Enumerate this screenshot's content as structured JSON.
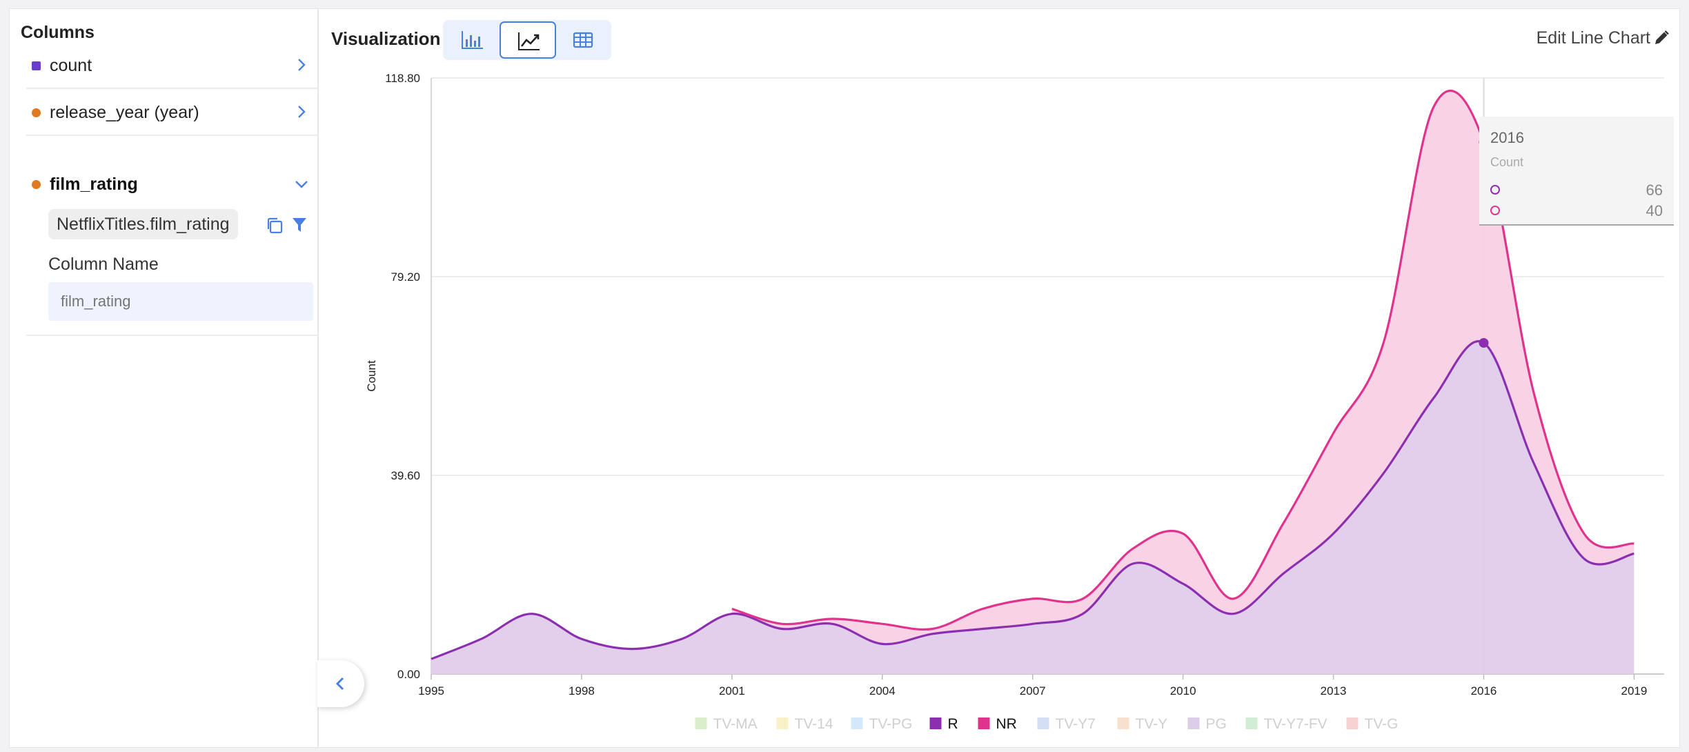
{
  "sidebar": {
    "title": "Columns",
    "columns": [
      {
        "label": "count",
        "type": "measure"
      },
      {
        "label": "release_year (year)",
        "type": "dimension"
      },
      {
        "label": "film_rating",
        "type": "dimension"
      }
    ],
    "expanded": {
      "source": "NetflixTitles.film_rating",
      "column_name_label": "Column Name",
      "column_name_placeholder": "film_rating"
    }
  },
  "toolbar": {
    "visualization_label": "Visualization",
    "edit_label": "Edit Line Chart"
  },
  "tooltip": {
    "year": "2016",
    "subtitle": "Count",
    "rows": [
      {
        "value": "66",
        "color": "#8b2fb0"
      },
      {
        "value": "40",
        "color": "#e0338e"
      }
    ]
  },
  "chart_data": {
    "type": "area",
    "stacked": true,
    "ylabel": "Count",
    "ylim": [
      0,
      118.8
    ],
    "yticks": [
      "0.00",
      "39.60",
      "79.20",
      "118.80"
    ],
    "xticks": [
      "1995",
      "1998",
      "2001",
      "2004",
      "2007",
      "2010",
      "2013",
      "2016",
      "2019"
    ],
    "x": [
      1995,
      1996,
      1997,
      1998,
      1999,
      2000,
      2001,
      2002,
      2003,
      2004,
      2005,
      2006,
      2007,
      2008,
      2009,
      2010,
      2011,
      2012,
      2013,
      2014,
      2015,
      2016,
      2017,
      2018,
      2019
    ],
    "series": [
      {
        "name": "R",
        "color": "#8b2fb0",
        "values": [
          3,
          7,
          12,
          7,
          5,
          7,
          12,
          9,
          10,
          6,
          8,
          9,
          10,
          12,
          22,
          18,
          12,
          20,
          28,
          40,
          55,
          66,
          42,
          23,
          24
        ]
      },
      {
        "name": "NR",
        "color": "#e0338e",
        "values": [
          null,
          null,
          null,
          null,
          null,
          null,
          1,
          1,
          1,
          4,
          1,
          4,
          5,
          3,
          3,
          10,
          3,
          10,
          20,
          26,
          58,
          40,
          14,
          5,
          2
        ]
      }
    ],
    "legend": [
      "TV-MA",
      "TV-14",
      "TV-PG",
      "R",
      "NR",
      "TV-Y7",
      "TV-Y",
      "PG",
      "TV-Y7-FV",
      "TV-G"
    ],
    "legend_colors": [
      "#d5ecc4",
      "#fbefc0",
      "#cfe6fb",
      "#8b2fb0",
      "#e0338e",
      "#cfdcf4",
      "#f8dcc8",
      "#d8c9e6",
      "#cceccf",
      "#f6cccc"
    ],
    "legend_active": [
      "R",
      "NR"
    ],
    "legend_placement": "bottom",
    "grid": true,
    "highlight_x": 2016
  }
}
